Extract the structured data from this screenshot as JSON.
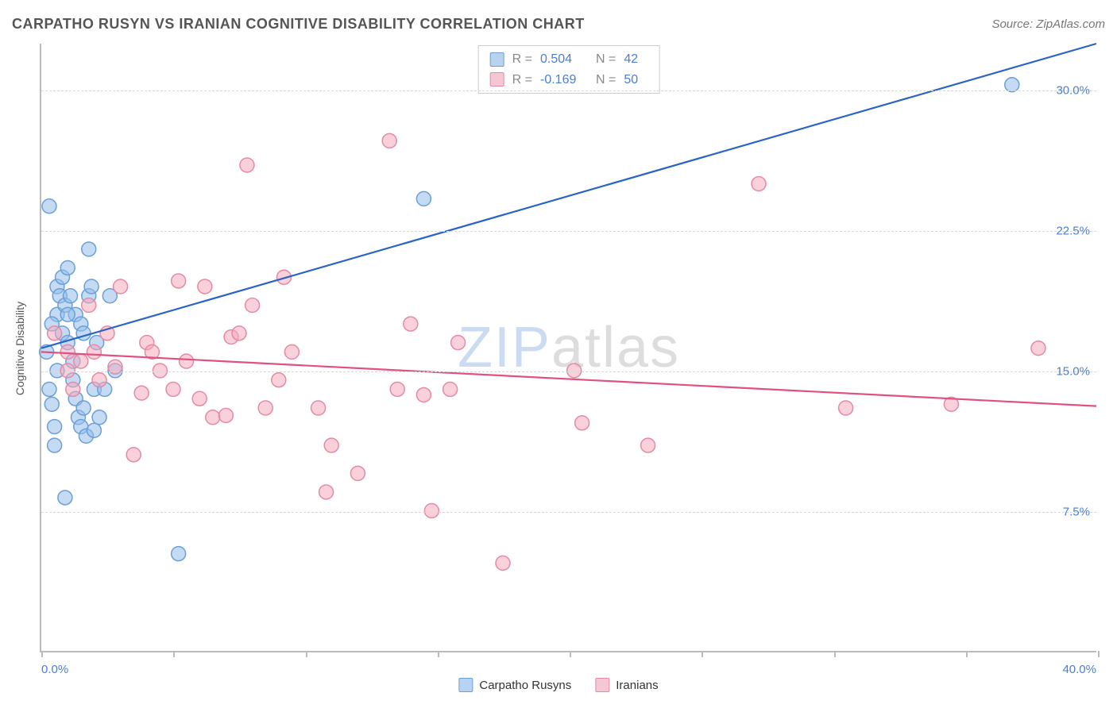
{
  "title": "CARPATHO RUSYN VS IRANIAN COGNITIVE DISABILITY CORRELATION CHART",
  "source": "Source: ZipAtlas.com",
  "ylabel": "Cognitive Disability",
  "watermark": {
    "z": "ZIP",
    "rest": "atlas"
  },
  "chart": {
    "type": "scatter",
    "background_color": "#ffffff",
    "grid_color": "#d8d8d8",
    "axis_color": "#bbbbbb",
    "tick_label_color": "#4a7fd6",
    "tick_fontsize": 15,
    "label_color": "#555555",
    "label_fontsize": 14,
    "marker_radius": 9,
    "marker_stroke_width": 1.5,
    "trend_line_width": 2.2,
    "xlim": [
      0,
      40
    ],
    "ylim": [
      0,
      32.5
    ],
    "xticks": [
      0,
      5,
      10,
      15,
      20,
      25,
      30,
      35,
      40
    ],
    "xtick_labels_shown": {
      "0": "0.0%",
      "40": "40.0%"
    },
    "yticks": [
      7.5,
      15.0,
      22.5,
      30.0
    ],
    "ytick_labels": [
      "7.5%",
      "15.0%",
      "22.5%",
      "30.0%"
    ]
  },
  "series": [
    {
      "name": "Carpatho Rusyns",
      "fill_color": "rgba(150,190,235,0.55)",
      "stroke_color": "#6a9fd8",
      "swatch_fill": "#b8d3f0",
      "swatch_border": "#6a9fd8",
      "stats": {
        "R": "0.504",
        "N": "42"
      },
      "trend": {
        "x1": 0,
        "y1": 16.2,
        "x2": 40,
        "y2": 32.5,
        "color": "#2a64c8"
      },
      "points": [
        [
          0.2,
          16.0
        ],
        [
          0.3,
          14.0
        ],
        [
          0.4,
          13.2
        ],
        [
          0.5,
          12.0
        ],
        [
          0.5,
          11.0
        ],
        [
          0.6,
          18.0
        ],
        [
          0.6,
          19.5
        ],
        [
          0.7,
          19.0
        ],
        [
          0.8,
          17.0
        ],
        [
          0.8,
          20.0
        ],
        [
          0.9,
          18.5
        ],
        [
          1.0,
          16.5
        ],
        [
          1.0,
          20.5
        ],
        [
          1.1,
          19.0
        ],
        [
          1.2,
          14.5
        ],
        [
          1.2,
          15.5
        ],
        [
          1.3,
          13.5
        ],
        [
          1.3,
          18.0
        ],
        [
          1.4,
          12.5
        ],
        [
          1.5,
          12.0
        ],
        [
          1.5,
          17.5
        ],
        [
          1.6,
          13.0
        ],
        [
          1.7,
          11.5
        ],
        [
          1.8,
          21.5
        ],
        [
          1.8,
          19.0
        ],
        [
          1.9,
          19.5
        ],
        [
          2.0,
          14.0
        ],
        [
          2.0,
          11.8
        ],
        [
          2.2,
          12.5
        ],
        [
          2.4,
          14.0
        ],
        [
          2.6,
          19.0
        ],
        [
          2.8,
          15.0
        ],
        [
          0.3,
          23.8
        ],
        [
          0.9,
          8.2
        ],
        [
          5.2,
          5.2
        ],
        [
          14.5,
          24.2
        ],
        [
          36.8,
          30.3
        ],
        [
          1.6,
          17.0
        ],
        [
          2.1,
          16.5
        ],
        [
          1.0,
          18.0
        ],
        [
          0.4,
          17.5
        ],
        [
          0.6,
          15.0
        ]
      ]
    },
    {
      "name": "Iranians",
      "fill_color": "rgba(245,170,190,0.55)",
      "stroke_color": "#e48aa5",
      "swatch_fill": "#f5c6d4",
      "swatch_border": "#e48aa5",
      "stats": {
        "R": "-0.169",
        "N": "50"
      },
      "trend": {
        "x1": 0,
        "y1": 16.0,
        "x2": 40,
        "y2": 13.1,
        "color": "#e05080"
      },
      "points": [
        [
          0.5,
          17.0
        ],
        [
          1.0,
          15.0
        ],
        [
          1.2,
          14.0
        ],
        [
          1.5,
          15.5
        ],
        [
          1.8,
          18.5
        ],
        [
          2.0,
          16.0
        ],
        [
          2.2,
          14.5
        ],
        [
          2.5,
          17.0
        ],
        [
          3.0,
          19.5
        ],
        [
          3.5,
          10.5
        ],
        [
          3.8,
          13.8
        ],
        [
          4.0,
          16.5
        ],
        [
          4.5,
          15.0
        ],
        [
          5.0,
          14.0
        ],
        [
          5.2,
          19.8
        ],
        [
          5.5,
          15.5
        ],
        [
          6.0,
          13.5
        ],
        [
          6.2,
          19.5
        ],
        [
          6.5,
          12.5
        ],
        [
          7.0,
          12.6
        ],
        [
          7.2,
          16.8
        ],
        [
          7.5,
          17.0
        ],
        [
          7.8,
          26.0
        ],
        [
          8.0,
          18.5
        ],
        [
          8.5,
          13.0
        ],
        [
          9.0,
          14.5
        ],
        [
          9.2,
          20.0
        ],
        [
          9.5,
          16.0
        ],
        [
          10.5,
          13.0
        ],
        [
          10.8,
          8.5
        ],
        [
          11.0,
          11.0
        ],
        [
          12.0,
          9.5
        ],
        [
          13.2,
          27.3
        ],
        [
          13.5,
          14.0
        ],
        [
          14.0,
          17.5
        ],
        [
          14.5,
          13.7
        ],
        [
          14.8,
          7.5
        ],
        [
          15.5,
          14.0
        ],
        [
          15.8,
          16.5
        ],
        [
          17.5,
          4.7
        ],
        [
          20.2,
          15.0
        ],
        [
          20.5,
          12.2
        ],
        [
          23.0,
          11.0
        ],
        [
          27.2,
          25.0
        ],
        [
          30.5,
          13.0
        ],
        [
          34.5,
          13.2
        ],
        [
          37.8,
          16.2
        ],
        [
          1.0,
          16.0
        ],
        [
          2.8,
          15.2
        ],
        [
          4.2,
          16.0
        ]
      ]
    }
  ],
  "stat_box": {
    "r_label": "R =",
    "n_label": "N ="
  },
  "legend_bottom": [
    "Carpatho Rusyns",
    "Iranians"
  ]
}
